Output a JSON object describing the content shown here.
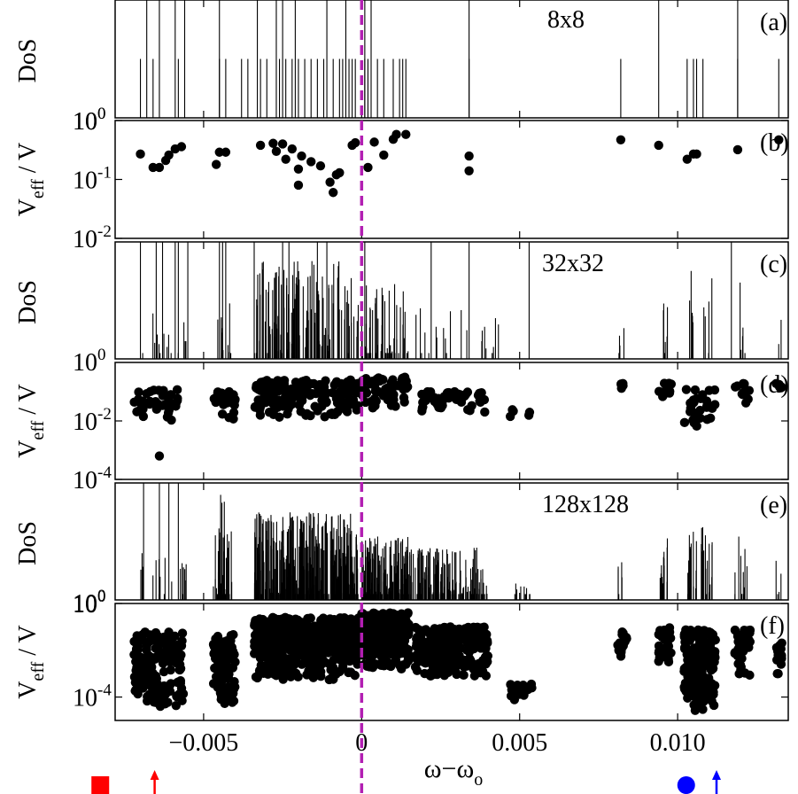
{
  "figure": {
    "xlabel_main": "ω−ω",
    "xlabel_sub": "o",
    "xlim": [
      -0.0078,
      0.0135
    ],
    "xticks": [
      {
        "value": -0.005,
        "label": "−0.005"
      },
      {
        "value": 0,
        "label": "0"
      },
      {
        "value": 0.005,
        "label": "0.005"
      },
      {
        "value": 0.01,
        "label": "0.010"
      }
    ],
    "vline_x": 0,
    "colors": {
      "marker": "#000000",
      "vline": "#b21fb2",
      "red": "#ff0000",
      "blue": "#0000ff"
    },
    "bottom_markers": [
      {
        "shape": "square",
        "color": "#ff0000",
        "x": -0.00827
      },
      {
        "shape": "arrow",
        "color": "#ff0000",
        "x": -0.00655
      },
      {
        "shape": "circle",
        "color": "#0000ff",
        "x": 0.01027
      },
      {
        "shape": "arrow",
        "color": "#0000ff",
        "x": 0.01123
      }
    ]
  },
  "chart_data": [
    {
      "panel": "a",
      "type": "bar",
      "label": "(a)",
      "annotation": "8x8",
      "ylabel": "DoS",
      "ytick_label": "10",
      "ytick_exp": "0",
      "x_tall": [
        -0.0068,
        -0.0064,
        -0.0059,
        -0.0056,
        -0.0045,
        -0.0033,
        -0.0027,
        -0.0025,
        -0.0021,
        -0.0011,
        -0.0005,
        0.0001,
        0.0003,
        0.0034,
        0.0094,
        0.0119
      ],
      "x_short": [
        -0.007,
        -0.0066,
        -0.0058,
        -0.0045,
        -0.0043,
        -0.0038,
        -0.0036,
        -0.0032,
        -0.003,
        -0.0026,
        -0.0024,
        -0.0022,
        -0.002,
        -0.0018,
        -0.0016,
        -0.0014,
        -0.0012,
        -0.0009,
        -0.0007,
        -0.0006,
        -0.0004,
        -0.0003,
        -0.0002,
        0.0001,
        0.0002,
        0.0005,
        0.0007,
        0.001,
        0.0012,
        0.0013,
        0.0014,
        0.0034,
        0.0082,
        0.0103,
        0.0105,
        0.0106,
        0.0108,
        0.0119,
        0.0132
      ]
    },
    {
      "panel": "b",
      "type": "scatter",
      "label": "(b)",
      "ylabel_main": "V",
      "ylabel_sub": "eff",
      "ylabel_tail": " / V",
      "yscale": "log",
      "ylim_exp": [
        -2,
        0
      ],
      "yticks": [
        {
          "exp": 0
        },
        {
          "exp": -1
        },
        {
          "exp": -2
        }
      ],
      "points": [
        [
          -0.007,
          0.27
        ],
        [
          -0.0066,
          0.16
        ],
        [
          -0.0064,
          0.16
        ],
        [
          -0.0062,
          0.21
        ],
        [
          -0.0061,
          0.26
        ],
        [
          -0.0059,
          0.33
        ],
        [
          -0.0057,
          0.36
        ],
        [
          -0.0046,
          0.18
        ],
        [
          -0.0045,
          0.29
        ],
        [
          -0.0043,
          0.29
        ],
        [
          -0.0032,
          0.38
        ],
        [
          -0.0028,
          0.41
        ],
        [
          -0.0027,
          0.3
        ],
        [
          -0.0025,
          0.4
        ],
        [
          -0.0024,
          0.22
        ],
        [
          -0.0022,
          0.33
        ],
        [
          -0.002,
          0.15
        ],
        [
          -0.002,
          0.08
        ],
        [
          -0.0019,
          0.25
        ],
        [
          -0.0016,
          0.2
        ],
        [
          -0.0013,
          0.17
        ],
        [
          -0.001,
          0.09
        ],
        [
          -0.0009,
          0.06
        ],
        [
          -0.0008,
          0.12
        ],
        [
          -0.0007,
          0.13
        ],
        [
          -0.0003,
          0.38
        ],
        [
          -0.0002,
          0.42
        ],
        [
          0.0002,
          0.16
        ],
        [
          0.0004,
          0.43
        ],
        [
          0.0007,
          0.26
        ],
        [
          0.001,
          0.48
        ],
        [
          0.0011,
          0.58
        ],
        [
          0.0014,
          0.58
        ],
        [
          0.0034,
          0.25
        ],
        [
          0.0034,
          0.14
        ],
        [
          0.0082,
          0.47
        ],
        [
          0.0094,
          0.38
        ],
        [
          0.0103,
          0.22
        ],
        [
          0.0105,
          0.27
        ],
        [
          0.0106,
          0.27
        ],
        [
          0.0119,
          0.32
        ],
        [
          0.0132,
          0.47
        ]
      ]
    },
    {
      "panel": "c",
      "type": "bar",
      "label": "(c)",
      "annotation": "32x32",
      "ylabel": "DoS",
      "ytick_label": "10",
      "ytick_exp": "0",
      "x_tall": [
        -0.007,
        -0.0065,
        -0.0063,
        -0.0059,
        -0.0058,
        -0.0055,
        -0.0045,
        -0.0044,
        -0.0043,
        -0.0034,
        -0.0025,
        -0.0023,
        -0.0014,
        -0.0011,
        0.0001,
        0.0022,
        0.0034,
        0.0053,
        0.0117
      ],
      "regions": [
        {
          "from": -0.007,
          "to": -0.0055,
          "count": 14,
          "max": 0.4
        },
        {
          "from": -0.0046,
          "to": -0.0041,
          "count": 10,
          "max": 0.5
        },
        {
          "from": -0.0034,
          "to": -0.0001,
          "count": 130,
          "max": 0.85
        },
        {
          "from": 0.0,
          "to": 0.0015,
          "count": 60,
          "max": 0.65
        },
        {
          "from": 0.0015,
          "to": 0.0047,
          "count": 22,
          "max": 0.55
        },
        {
          "from": 0.0081,
          "to": 0.0083,
          "count": 4,
          "max": 0.3
        },
        {
          "from": 0.0094,
          "to": 0.0097,
          "count": 6,
          "max": 0.6
        },
        {
          "from": 0.0103,
          "to": 0.0111,
          "count": 10,
          "max": 0.8
        },
        {
          "from": 0.0119,
          "to": 0.0122,
          "count": 5,
          "max": 0.7
        },
        {
          "from": 0.0131,
          "to": 0.0133,
          "count": 2,
          "max": 0.5
        }
      ]
    },
    {
      "panel": "d",
      "type": "scatter",
      "label": "(d)",
      "ylabel_main": "V",
      "ylabel_sub": "eff",
      "ylabel_tail": " / V",
      "yscale": "log",
      "ylim_exp": [
        -4,
        0
      ],
      "yticks": [
        {
          "exp": -2
        },
        {
          "exp": -4
        }
      ],
      "clusters": [
        {
          "from": -0.0072,
          "to": -0.0058,
          "count": 40,
          "lo": -2.1,
          "hi": -0.9,
          "extra": [
            [
              -0.0064,
              -3.2
            ]
          ]
        },
        {
          "from": -0.0047,
          "to": -0.004,
          "count": 30,
          "lo": -2.0,
          "hi": -1.0
        },
        {
          "from": -0.0034,
          "to": -0.0001,
          "count": 170,
          "lo": -1.9,
          "hi": -0.6
        },
        {
          "from": 0.0,
          "to": 0.0015,
          "count": 60,
          "lo": -1.6,
          "hi": -0.5
        },
        {
          "from": 0.0018,
          "to": 0.0039,
          "count": 50,
          "lo": -1.7,
          "hi": -1.0
        },
        {
          "from": 0.0047,
          "to": 0.0054,
          "count": 5,
          "lo": -2.0,
          "hi": -1.6
        },
        {
          "from": 0.0082,
          "to": 0.0083,
          "count": 5,
          "lo": -1.0,
          "hi": -0.7
        },
        {
          "from": 0.0094,
          "to": 0.0098,
          "count": 10,
          "lo": -1.2,
          "hi": -0.7
        },
        {
          "from": 0.0102,
          "to": 0.0112,
          "count": 30,
          "lo": -2.2,
          "hi": -0.9
        },
        {
          "from": 0.0118,
          "to": 0.0123,
          "count": 12,
          "lo": -1.5,
          "hi": -0.7
        },
        {
          "from": 0.0131,
          "to": 0.0133,
          "count": 5,
          "lo": -1.0,
          "hi": -0.7
        }
      ]
    },
    {
      "panel": "e",
      "type": "bar",
      "label": "(e)",
      "annotation": "128x128",
      "ylabel": "DoS",
      "ytick_label": "10",
      "ytick_exp": "0",
      "x_tall": [
        -0.0069,
        -0.0064,
        -0.0061,
        -0.0058
      ],
      "regions": [
        {
          "from": -0.007,
          "to": -0.0055,
          "count": 20,
          "max": 0.4
        },
        {
          "from": -0.0047,
          "to": -0.0041,
          "count": 40,
          "max": 0.9
        },
        {
          "from": -0.0034,
          "to": -0.0001,
          "count": 380,
          "max": 0.75
        },
        {
          "from": 0.0,
          "to": 0.0015,
          "count": 160,
          "max": 0.55
        },
        {
          "from": 0.0015,
          "to": 0.004,
          "count": 140,
          "max": 0.45
        },
        {
          "from": 0.0047,
          "to": 0.0054,
          "count": 10,
          "max": 0.15
        },
        {
          "from": 0.0081,
          "to": 0.0083,
          "count": 5,
          "max": 0.35
        },
        {
          "from": 0.0094,
          "to": 0.0097,
          "count": 14,
          "max": 0.55
        },
        {
          "from": 0.0103,
          "to": 0.0111,
          "count": 30,
          "max": 0.75
        },
        {
          "from": 0.0118,
          "to": 0.0122,
          "count": 12,
          "max": 0.55
        },
        {
          "from": 0.0131,
          "to": 0.0133,
          "count": 4,
          "max": 0.35
        }
      ]
    },
    {
      "panel": "f",
      "type": "scatter",
      "label": "(f)",
      "ylabel_main": "V",
      "ylabel_sub": "eff",
      "ylabel_tail": " / V",
      "yscale": "log",
      "ylim_exp": [
        -5,
        0
      ],
      "yticks": [
        {
          "exp": 0
        },
        {
          "exp": -4
        }
      ],
      "clusters": [
        {
          "from": -0.0072,
          "to": -0.0056,
          "count": 160,
          "lo": -4.5,
          "hi": -1.2
        },
        {
          "from": -0.0047,
          "to": -0.004,
          "count": 100,
          "lo": -4.4,
          "hi": -1.3
        },
        {
          "from": -0.0034,
          "to": -0.0001,
          "count": 500,
          "lo": -3.3,
          "hi": -0.6
        },
        {
          "from": 0.0,
          "to": 0.0015,
          "count": 250,
          "lo": -2.8,
          "hi": -0.4
        },
        {
          "from": 0.0017,
          "to": 0.004,
          "count": 230,
          "lo": -3.2,
          "hi": -1.0
        },
        {
          "from": 0.0047,
          "to": 0.0054,
          "count": 15,
          "lo": -4.2,
          "hi": -3.4
        },
        {
          "from": 0.0081,
          "to": 0.0084,
          "count": 20,
          "lo": -2.4,
          "hi": -1.2
        },
        {
          "from": 0.0094,
          "to": 0.0098,
          "count": 40,
          "lo": -2.6,
          "hi": -1.0
        },
        {
          "from": 0.0102,
          "to": 0.0112,
          "count": 150,
          "lo": -4.6,
          "hi": -1.1
        },
        {
          "from": 0.0118,
          "to": 0.0123,
          "count": 40,
          "lo": -3.1,
          "hi": -1.0
        },
        {
          "from": 0.0131,
          "to": 0.0133,
          "count": 15,
          "lo": -3.2,
          "hi": -1.5
        }
      ]
    }
  ]
}
